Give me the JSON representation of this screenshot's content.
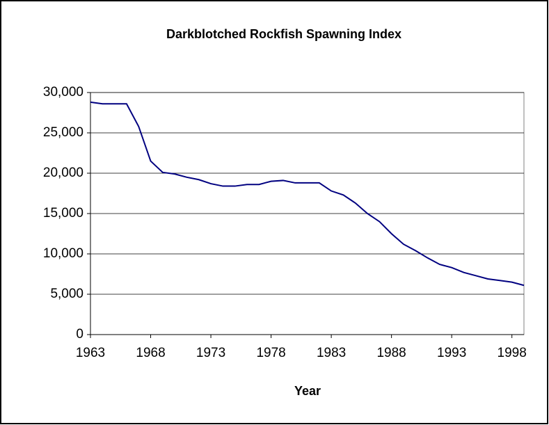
{
  "chart_data": {
    "type": "line",
    "title": "Darkblotched Rockfish Spawning Index",
    "x_label": "Year",
    "x": [
      1963,
      1964,
      1965,
      1966,
      1967,
      1968,
      1969,
      1970,
      1971,
      1972,
      1973,
      1974,
      1975,
      1976,
      1977,
      1978,
      1979,
      1980,
      1981,
      1982,
      1983,
      1984,
      1985,
      1986,
      1987,
      1988,
      1989,
      1990,
      1991,
      1992,
      1993,
      1994,
      1995,
      1996,
      1997,
      1998,
      1999
    ],
    "series": [
      {
        "color": "#000080",
        "values": [
          28800,
          28600,
          28600,
          28600,
          25800,
          21500,
          20100,
          19900,
          19500,
          19200,
          18700,
          18400,
          18400,
          18600,
          18600,
          19000,
          19100,
          18800,
          18800,
          18800,
          17800,
          17300,
          16300,
          15000,
          14000,
          12500,
          11200,
          10400,
          9500,
          8700,
          8300,
          7700,
          7300,
          6900,
          6700,
          6500,
          6100
        ]
      }
    ],
    "xlim": [
      1963,
      1999
    ],
    "xticks": [
      1963,
      1968,
      1973,
      1978,
      1983,
      1988,
      1993,
      1998
    ],
    "ylim": [
      0,
      30000
    ],
    "yticks": [
      0,
      {
        "value": 5000,
        "label": "5,000"
      },
      {
        "value": 10000,
        "label": "10,000"
      },
      {
        "value": 15000,
        "label": "15,000"
      },
      {
        "value": 20000,
        "label": "20,000"
      },
      {
        "value": 25000,
        "label": "25,000"
      },
      {
        "value": 30000,
        "label": "30,000"
      }
    ],
    "grid": true
  }
}
